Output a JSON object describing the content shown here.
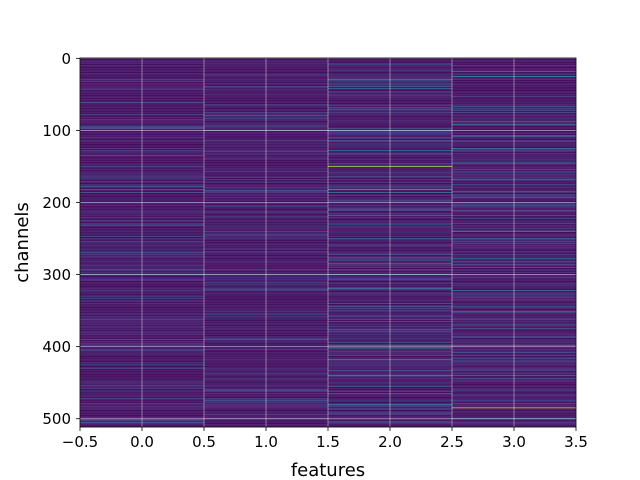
{
  "chart_data": {
    "type": "heatmap",
    "title": "",
    "xlabel": "features",
    "ylabel": "channels",
    "xlim": [
      -0.5,
      3.5
    ],
    "ylim": [
      511.5,
      -0.5
    ],
    "y_inverted": true,
    "grid": true,
    "colormap": "viridis",
    "background_value": 0.04,
    "num_features": 4,
    "num_channels": 512,
    "xticks": [
      -0.5,
      0.0,
      0.5,
      1.0,
      1.5,
      2.0,
      2.5,
      3.0,
      3.5
    ],
    "xtick_labels": [
      "−0.5",
      "0.0",
      "0.5",
      "1.0",
      "1.5",
      "2.0",
      "2.5",
      "3.0",
      "3.5"
    ],
    "yticks": [
      0,
      100,
      200,
      300,
      400,
      500
    ],
    "ytick_labels": [
      "0",
      "100",
      "200",
      "300",
      "400",
      "500"
    ],
    "columns": [
      {
        "feature": 0,
        "noise_seed": 11,
        "noise_scale": 0.16,
        "highlights": [
          [
            62,
            0.2
          ],
          [
            95,
            0.28
          ],
          [
            97,
            0.25
          ],
          [
            135,
            0.28
          ],
          [
            150,
            0.2
          ],
          [
            178,
            0.3
          ],
          [
            182,
            0.32
          ],
          [
            186,
            0.28
          ],
          [
            270,
            0.2
          ],
          [
            300,
            0.3
          ],
          [
            330,
            0.2
          ],
          [
            390,
            0.25
          ],
          [
            396,
            0.3
          ],
          [
            430,
            0.25
          ],
          [
            472,
            0.2
          ],
          [
            505,
            0.3
          ]
        ]
      },
      {
        "feature": 1,
        "noise_seed": 23,
        "noise_scale": 0.16,
        "highlights": [
          [
            40,
            0.2
          ],
          [
            80,
            0.28
          ],
          [
            95,
            0.3
          ],
          [
            100,
            0.3
          ],
          [
            180,
            0.2
          ],
          [
            205,
            0.3
          ],
          [
            213,
            0.32
          ],
          [
            220,
            0.25
          ],
          [
            300,
            0.2
          ],
          [
            320,
            0.3
          ],
          [
            355,
            0.25
          ],
          [
            390,
            0.28
          ],
          [
            445,
            0.3
          ],
          [
            460,
            0.25
          ],
          [
            475,
            0.25
          ],
          [
            500,
            0.3
          ]
        ]
      },
      {
        "feature": 2,
        "noise_seed": 37,
        "noise_scale": 0.22,
        "highlights": [
          [
            8,
            0.3
          ],
          [
            30,
            0.42
          ],
          [
            37,
            0.35
          ],
          [
            42,
            0.35
          ],
          [
            65,
            0.3
          ],
          [
            100,
            0.35
          ],
          [
            128,
            0.35
          ],
          [
            150,
            0.85
          ],
          [
            182,
            0.55
          ],
          [
            186,
            0.4
          ],
          [
            198,
            0.35
          ],
          [
            218,
            0.3
          ],
          [
            230,
            0.38
          ],
          [
            260,
            0.3
          ],
          [
            280,
            0.4
          ],
          [
            285,
            0.55
          ],
          [
            300,
            0.3
          ],
          [
            320,
            0.38
          ],
          [
            345,
            0.3
          ],
          [
            362,
            0.3
          ],
          [
            398,
            0.55
          ],
          [
            402,
            0.6
          ],
          [
            418,
            0.45
          ],
          [
            440,
            0.4
          ],
          [
            455,
            0.35
          ],
          [
            465,
            0.3
          ],
          [
            480,
            0.35
          ],
          [
            492,
            0.3
          ],
          [
            506,
            0.4
          ]
        ]
      },
      {
        "feature": 3,
        "noise_seed": 53,
        "noise_scale": 0.22,
        "highlights": [
          [
            18,
            0.4
          ],
          [
            25,
            0.5
          ],
          [
            70,
            0.3
          ],
          [
            88,
            0.5
          ],
          [
            92,
            0.45
          ],
          [
            108,
            0.4
          ],
          [
            125,
            0.38
          ],
          [
            145,
            0.4
          ],
          [
            185,
            0.45
          ],
          [
            212,
            0.4
          ],
          [
            240,
            0.5
          ],
          [
            250,
            0.3
          ],
          [
            278,
            0.45
          ],
          [
            290,
            0.3
          ],
          [
            322,
            0.4
          ],
          [
            335,
            0.35
          ],
          [
            345,
            0.5
          ],
          [
            352,
            0.38
          ],
          [
            370,
            0.35
          ],
          [
            398,
            0.55
          ],
          [
            420,
            0.3
          ],
          [
            440,
            0.35
          ],
          [
            460,
            0.3
          ],
          [
            485,
            0.95
          ],
          [
            500,
            0.4
          ]
        ]
      }
    ]
  }
}
